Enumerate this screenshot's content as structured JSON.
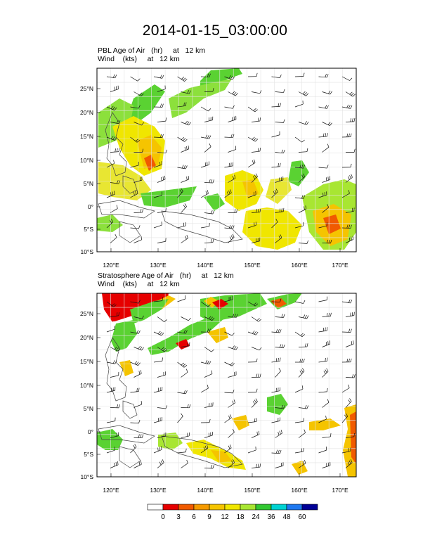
{
  "page_title": "2014-01-15_03:00:00",
  "panels": [
    {
      "id": "pbl",
      "line1": "PBL Age of Air   (hr)     at   12 km",
      "line2": "Wind    (kts)     at   12 km",
      "lat_ticks": [
        "25°N",
        "20°N",
        "15°N",
        "10°N",
        "5°N",
        "0°",
        "5°S",
        "10°S"
      ],
      "lon_ticks": [
        "120°E",
        "130°E",
        "140°E",
        "150°E",
        "160°E",
        "170°E"
      ]
    },
    {
      "id": "strat",
      "line1": "Stratosphere Age of Air   (hr)     at   12 km",
      "line2": "Wind    (kts)     at   12 km",
      "lat_ticks": [
        "25°N",
        "20°N",
        "15°N",
        "10°N",
        "5°N",
        "0°",
        "5°S",
        "10°S"
      ],
      "lon_ticks": [
        "120°E",
        "130°E",
        "140°E",
        "150°E",
        "160°E",
        "170°E"
      ]
    }
  ],
  "colorbar": {
    "labels": [
      "0",
      "3",
      "6",
      "9",
      "12",
      "18",
      "24",
      "36",
      "48",
      "60"
    ],
    "colors": [
      "#ffffff",
      "#e60000",
      "#f05a00",
      "#f59a00",
      "#f5c400",
      "#f0e600",
      "#a8e632",
      "#32c832",
      "#00d2d2",
      "#1e78f0",
      "#000096"
    ]
  }
}
